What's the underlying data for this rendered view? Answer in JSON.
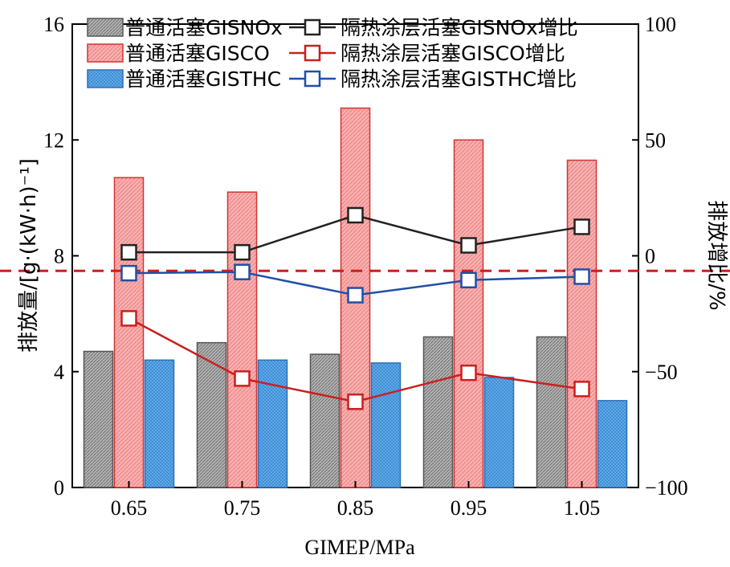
{
  "chart_data": {
    "type": "bar",
    "title": "",
    "xlabel": "GIMEP/MPa",
    "ylabel_left": "排放量/[g·(kW·h)⁻¹]",
    "ylabel_right": "排放增比/%",
    "categories": [
      "0.65",
      "0.75",
      "0.85",
      "0.95",
      "1.05"
    ],
    "left_ylim": [
      0,
      16
    ],
    "left_yticks": [
      "0",
      "4",
      "8",
      "12",
      "16"
    ],
    "right_ylim": [
      -100,
      100
    ],
    "right_yticks": [
      "-100",
      "-50",
      "0",
      "50",
      "100"
    ],
    "bar_series": [
      {
        "name": "普通活塞GISNOx",
        "values": [
          4.7,
          5.0,
          4.6,
          5.2,
          5.2
        ],
        "color": "#a9a9a9",
        "pattern": "hatch"
      },
      {
        "name": "普通活塞GISCO",
        "values": [
          10.7,
          10.2,
          13.1,
          12.0,
          11.3
        ],
        "color": "#f7a3a3",
        "pattern": "stripe"
      },
      {
        "name": "普通活塞GISTHC",
        "values": [
          4.4,
          4.4,
          4.3,
          3.8,
          3.0
        ],
        "color": "#5aaae6",
        "pattern": "grid"
      }
    ],
    "line_series": [
      {
        "name": "隔热涂层活塞GISNOx增比",
        "values": [
          1.5,
          1.5,
          17.5,
          4.5,
          12.5
        ],
        "color": "#222222"
      },
      {
        "name": "隔热涂层活塞GISCO增比",
        "values": [
          -27.0,
          -53.0,
          -63.0,
          -50.5,
          -57.5
        ],
        "color": "#cc1f1f"
      },
      {
        "name": "隔热涂层活塞GISTHC增比",
        "values": [
          -7.5,
          -7.0,
          -17.0,
          -10.5,
          -9.0
        ],
        "color": "#1f4fa8"
      }
    ],
    "reference_line": {
      "value": -6.5,
      "axis": "right",
      "color": "#cc1f1f",
      "style": "dashed"
    },
    "legend_position": "top",
    "grid": false
  }
}
